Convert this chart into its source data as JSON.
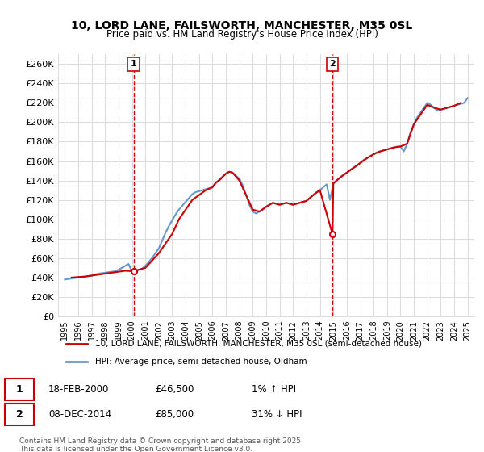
{
  "title": "10, LORD LANE, FAILSWORTH, MANCHESTER, M35 0SL",
  "subtitle": "Price paid vs. HM Land Registry's House Price Index (HPI)",
  "ylabel_ticks": [
    "£0",
    "£20K",
    "£40K",
    "£60K",
    "£80K",
    "£100K",
    "£120K",
    "£140K",
    "£160K",
    "£180K",
    "£200K",
    "£220K",
    "£240K",
    "£260K"
  ],
  "ytick_values": [
    0,
    20000,
    40000,
    60000,
    80000,
    100000,
    120000,
    140000,
    160000,
    180000,
    200000,
    220000,
    240000,
    260000
  ],
  "ylim": [
    0,
    270000
  ],
  "sale1": {
    "date_num": 2000.12,
    "price": 46500,
    "label": "1",
    "date_str": "18-FEB-2000",
    "pct": "1% ↑ HPI"
  },
  "sale2": {
    "date_num": 2014.93,
    "price": 85000,
    "label": "2",
    "date_str": "08-DEC-2014",
    "pct": "31% ↓ HPI"
  },
  "xlim": [
    1994.5,
    2025.5
  ],
  "xticks": [
    1995,
    1996,
    1997,
    1998,
    1999,
    2000,
    2001,
    2002,
    2003,
    2004,
    2005,
    2006,
    2007,
    2008,
    2009,
    2010,
    2011,
    2012,
    2013,
    2014,
    2015,
    2016,
    2017,
    2018,
    2019,
    2020,
    2021,
    2022,
    2023,
    2024,
    2025
  ],
  "line1_color": "#cc0000",
  "line2_color": "#6699cc",
  "vline_color": "#cc0000",
  "grid_color": "#dddddd",
  "bg_color": "#ffffff",
  "legend1_label": "10, LORD LANE, FAILSWORTH, MANCHESTER, M35 0SL (semi-detached house)",
  "legend2_label": "HPI: Average price, semi-detached house, Oldham",
  "footer": "Contains HM Land Registry data © Crown copyright and database right 2025.\nThis data is licensed under the Open Government Licence v3.0.",
  "hpi_data": {
    "years": [
      1995.0,
      1995.25,
      1995.5,
      1995.75,
      1996.0,
      1996.25,
      1996.5,
      1996.75,
      1997.0,
      1997.25,
      1997.5,
      1997.75,
      1998.0,
      1998.25,
      1998.5,
      1998.75,
      1999.0,
      1999.25,
      1999.5,
      1999.75,
      2000.0,
      2000.25,
      2000.5,
      2000.75,
      2001.0,
      2001.25,
      2001.5,
      2001.75,
      2002.0,
      2002.25,
      2002.5,
      2002.75,
      2003.0,
      2003.25,
      2003.5,
      2003.75,
      2004.0,
      2004.25,
      2004.5,
      2004.75,
      2005.0,
      2005.25,
      2005.5,
      2005.75,
      2006.0,
      2006.25,
      2006.5,
      2006.75,
      2007.0,
      2007.25,
      2007.5,
      2007.75,
      2008.0,
      2008.25,
      2008.5,
      2008.75,
      2009.0,
      2009.25,
      2009.5,
      2009.75,
      2010.0,
      2010.25,
      2010.5,
      2010.75,
      2011.0,
      2011.25,
      2011.5,
      2011.75,
      2012.0,
      2012.25,
      2012.5,
      2012.75,
      2013.0,
      2013.25,
      2013.5,
      2013.75,
      2014.0,
      2014.25,
      2014.5,
      2014.75,
      2015.0,
      2015.25,
      2015.5,
      2015.75,
      2016.0,
      2016.25,
      2016.5,
      2016.75,
      2017.0,
      2017.25,
      2017.5,
      2017.75,
      2018.0,
      2018.25,
      2018.5,
      2018.75,
      2019.0,
      2019.25,
      2019.5,
      2019.75,
      2020.0,
      2020.25,
      2020.5,
      2020.75,
      2021.0,
      2021.25,
      2021.5,
      2021.75,
      2022.0,
      2022.25,
      2022.5,
      2022.75,
      2023.0,
      2023.25,
      2023.5,
      2023.75,
      2024.0,
      2024.25,
      2024.5,
      2024.75,
      2025.0
    ],
    "prices": [
      38000,
      38500,
      39000,
      39500,
      40000,
      40500,
      41000,
      41500,
      42000,
      43000,
      44000,
      44500,
      45000,
      45500,
      46000,
      46500,
      48000,
      50000,
      52000,
      54000,
      46000,
      47000,
      48000,
      49000,
      52000,
      56000,
      60000,
      65000,
      70000,
      78000,
      86000,
      93000,
      99000,
      105000,
      110000,
      114000,
      118000,
      122000,
      126000,
      128000,
      129000,
      130000,
      131000,
      132000,
      133000,
      137000,
      141000,
      144000,
      147000,
      149000,
      148000,
      145000,
      142000,
      135000,
      125000,
      115000,
      108000,
      106000,
      108000,
      110000,
      113000,
      115000,
      117000,
      116000,
      115000,
      116000,
      117000,
      116000,
      115000,
      116000,
      117000,
      118000,
      119000,
      122000,
      125000,
      128000,
      130000,
      133000,
      136000,
      120000,
      137000,
      140000,
      143000,
      146000,
      148000,
      151000,
      153000,
      155000,
      158000,
      161000,
      163000,
      165000,
      167000,
      169000,
      170000,
      171000,
      172000,
      173000,
      174000,
      175000,
      175000,
      170000,
      178000,
      190000,
      198000,
      205000,
      210000,
      215000,
      220000,
      218000,
      215000,
      212000,
      213000,
      214000,
      215000,
      216000,
      217000,
      218000,
      219000,
      220000,
      225000
    ]
  },
  "price_data": {
    "years": [
      1995.5,
      1996.5,
      1997.0,
      1997.5,
      1998.0,
      1998.5,
      1999.0,
      1999.5,
      2000.12,
      2000.5,
      2001.0,
      2002.0,
      2003.0,
      2003.5,
      2004.0,
      2004.5,
      2005.0,
      2005.5,
      2006.0,
      2006.25,
      2006.5,
      2007.0,
      2007.25,
      2007.5,
      2008.0,
      2008.5,
      2009.0,
      2009.5,
      2010.0,
      2010.5,
      2011.0,
      2011.5,
      2012.0,
      2012.5,
      2013.0,
      2013.5,
      2014.0,
      2014.93,
      2015.0,
      2015.5,
      2016.0,
      2016.5,
      2017.0,
      2017.5,
      2018.0,
      2018.5,
      2019.0,
      2019.5,
      2020.0,
      2020.5,
      2021.0,
      2021.5,
      2022.0,
      2022.5,
      2023.0,
      2023.5,
      2024.0,
      2024.5
    ],
    "prices": [
      40000,
      41000,
      42000,
      43000,
      44000,
      45000,
      46000,
      47000,
      46500,
      48000,
      50000,
      65000,
      85000,
      100000,
      110000,
      120000,
      125000,
      130000,
      133000,
      138000,
      140000,
      147000,
      149000,
      148000,
      140000,
      125000,
      110000,
      108000,
      113000,
      117000,
      115000,
      117000,
      115000,
      117000,
      119000,
      125000,
      130000,
      85000,
      137000,
      143000,
      148000,
      153000,
      158000,
      163000,
      167000,
      170000,
      172000,
      174000,
      175000,
      178000,
      198000,
      208000,
      218000,
      215000,
      213000,
      215000,
      217000,
      220000
    ]
  }
}
